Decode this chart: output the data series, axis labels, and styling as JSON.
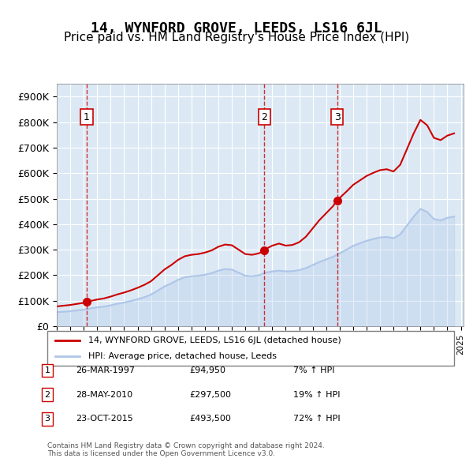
{
  "title": "14, WYNFORD GROVE, LEEDS, LS16 6JL",
  "subtitle": "Price paid vs. HM Land Registry's House Price Index (HPI)",
  "title_fontsize": 13,
  "subtitle_fontsize": 11,
  "hpi_color": "#aec6e8",
  "price_color": "#cc0000",
  "background_color": "#dce9f5",
  "plot_bg_color": "#dce9f5",
  "ylim": [
    0,
    950000
  ],
  "yticks": [
    0,
    100000,
    200000,
    300000,
    400000,
    500000,
    600000,
    700000,
    800000,
    900000
  ],
  "ytick_labels": [
    "£0",
    "£100K",
    "£200K",
    "£300K",
    "£400K",
    "£500K",
    "£600K",
    "£700K",
    "£800K",
    "£900K"
  ],
  "sales": [
    {
      "year": 1997.23,
      "price": 94950,
      "label": "1"
    },
    {
      "year": 2010.41,
      "price": 297500,
      "label": "2"
    },
    {
      "year": 2015.81,
      "price": 493500,
      "label": "3"
    }
  ],
  "legend_line1": "14, WYNFORD GROVE, LEEDS, LS16 6JL (detached house)",
  "legend_line2": "HPI: Average price, detached house, Leeds",
  "table_rows": [
    {
      "num": "1",
      "date": "26-MAR-1997",
      "price": "£94,950",
      "hpi": "7% ↑ HPI"
    },
    {
      "num": "2",
      "date": "28-MAY-2010",
      "price": "£297,500",
      "hpi": "19% ↑ HPI"
    },
    {
      "num": "3",
      "date": "23-OCT-2015",
      "price": "£493,500",
      "hpi": "72% ↑ HPI"
    }
  ],
  "footer": "Contains HM Land Registry data © Crown copyright and database right 2024.\nThis data is licensed under the Open Government Licence v3.0.",
  "hpi_data": {
    "years": [
      1995.0,
      1995.5,
      1996.0,
      1996.5,
      1997.0,
      1997.5,
      1998.0,
      1998.5,
      1999.0,
      1999.5,
      2000.0,
      2000.5,
      2001.0,
      2001.5,
      2002.0,
      2002.5,
      2003.0,
      2003.5,
      2004.0,
      2004.5,
      2005.0,
      2005.5,
      2006.0,
      2006.5,
      2007.0,
      2007.5,
      2008.0,
      2008.5,
      2009.0,
      2009.5,
      2010.0,
      2010.5,
      2011.0,
      2011.5,
      2012.0,
      2012.5,
      2013.0,
      2013.5,
      2014.0,
      2014.5,
      2015.0,
      2015.5,
      2016.0,
      2016.5,
      2017.0,
      2017.5,
      2018.0,
      2018.5,
      2019.0,
      2019.5,
      2020.0,
      2020.5,
      2021.0,
      2021.5,
      2022.0,
      2022.5,
      2023.0,
      2023.5,
      2024.0,
      2024.5
    ],
    "values": [
      55000,
      57000,
      59000,
      62000,
      65000,
      70000,
      74000,
      77000,
      82000,
      88000,
      93000,
      99000,
      106000,
      114000,
      124000,
      140000,
      156000,
      168000,
      182000,
      192000,
      196000,
      198000,
      202000,
      208000,
      218000,
      224000,
      222000,
      210000,
      198000,
      196000,
      200000,
      210000,
      215000,
      218000,
      215000,
      216000,
      220000,
      228000,
      240000,
      252000,
      262000,
      272000,
      286000,
      300000,
      315000,
      325000,
      335000,
      342000,
      348000,
      350000,
      345000,
      360000,
      395000,
      430000,
      460000,
      448000,
      420000,
      415000,
      425000,
      430000
    ]
  },
  "price_line_data": {
    "years": [
      1995.0,
      1997.23,
      2010.41,
      2015.81,
      2024.5
    ],
    "values": [
      55000,
      94950,
      297500,
      493500,
      760000
    ]
  }
}
